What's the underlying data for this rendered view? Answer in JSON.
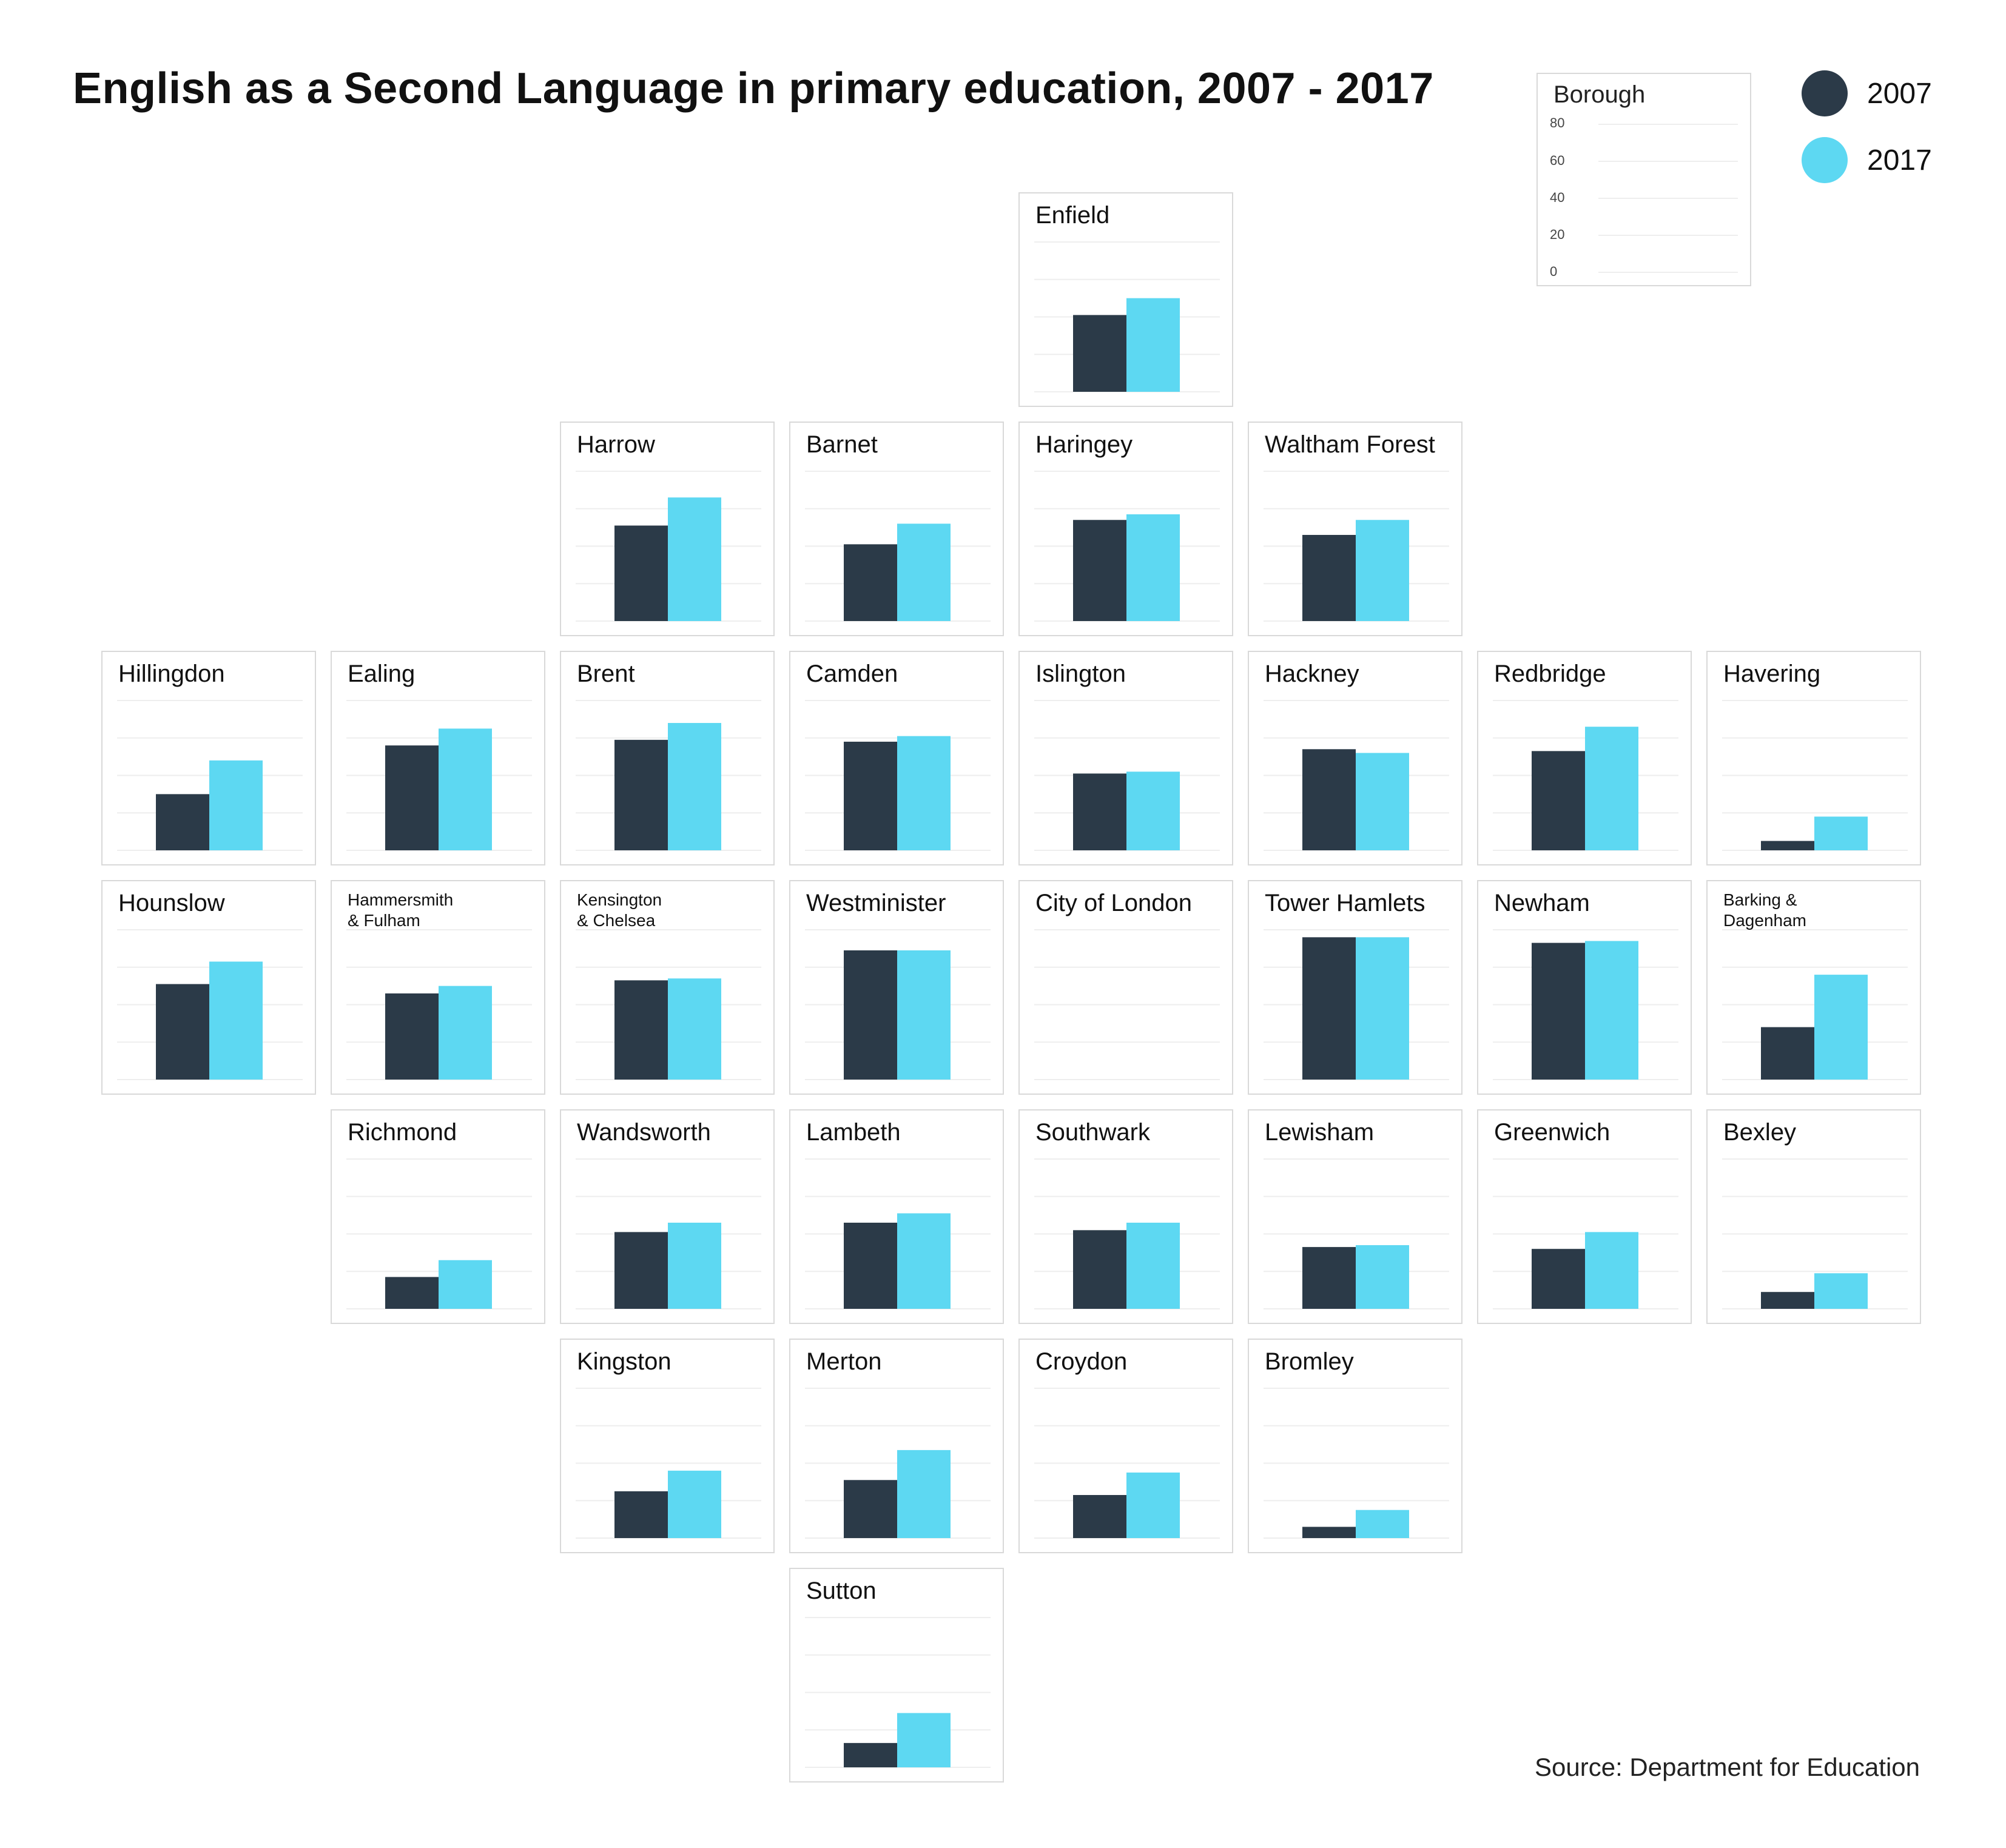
{
  "title": "English as a Second Language in primary education, 2007 - 2017",
  "source": "Source: Department for Education",
  "colors": {
    "y2007": "#2b3a48",
    "y2017": "#5dd8f2"
  },
  "legend": [
    {
      "label": "2007",
      "color": "#2b3a48"
    },
    {
      "label": "2017",
      "color": "#5dd8f2"
    }
  ],
  "key": {
    "title": "Borough",
    "ticks": [
      "80",
      "60",
      "40",
      "20",
      "0"
    ]
  },
  "chart_data": {
    "type": "bar",
    "title": "English as a Second Language in primary education, 2007 - 2017",
    "ylabel": "",
    "ylim": [
      0,
      80
    ],
    "series_names": [
      "2007",
      "2017"
    ],
    "boroughs": [
      {
        "name": "Enfield",
        "label": "Enfield",
        "row": 0,
        "col": 4,
        "values": [
          41,
          50
        ]
      },
      {
        "name": "Harrow",
        "label": "Harrow",
        "row": 1,
        "col": 2,
        "values": [
          51,
          66
        ]
      },
      {
        "name": "Barnet",
        "label": "Barnet",
        "row": 1,
        "col": 3,
        "values": [
          41,
          52
        ]
      },
      {
        "name": "Haringey",
        "label": "Haringey",
        "row": 1,
        "col": 4,
        "values": [
          54,
          57
        ]
      },
      {
        "name": "Waltham Forest",
        "label": "Waltham Forest",
        "row": 1,
        "col": 5,
        "values": [
          46,
          54
        ]
      },
      {
        "name": "Hillingdon",
        "label": "Hillingdon",
        "row": 2,
        "col": 0,
        "values": [
          30,
          48
        ]
      },
      {
        "name": "Ealing",
        "label": "Ealing",
        "row": 2,
        "col": 1,
        "values": [
          56,
          65
        ]
      },
      {
        "name": "Brent",
        "label": "Brent",
        "row": 2,
        "col": 2,
        "values": [
          59,
          68
        ]
      },
      {
        "name": "Camden",
        "label": "Camden",
        "row": 2,
        "col": 3,
        "values": [
          58,
          61
        ]
      },
      {
        "name": "Islington",
        "label": "Islington",
        "row": 2,
        "col": 4,
        "values": [
          41,
          42
        ]
      },
      {
        "name": "Hackney",
        "label": "Hackney",
        "row": 2,
        "col": 5,
        "values": [
          54,
          52
        ]
      },
      {
        "name": "Redbridge",
        "label": "Redbridge",
        "row": 2,
        "col": 6,
        "values": [
          53,
          66
        ]
      },
      {
        "name": "Havering",
        "label": "Havering",
        "row": 2,
        "col": 7,
        "values": [
          5,
          18
        ]
      },
      {
        "name": "Hounslow",
        "label": "Hounslow",
        "row": 3,
        "col": 0,
        "values": [
          51,
          63
        ]
      },
      {
        "name": "Hammersmith & Fulham",
        "label": "Hammersmith\n& Fulham",
        "row": 3,
        "col": 1,
        "values": [
          46,
          50
        ],
        "small": true
      },
      {
        "name": "Kensington & Chelsea",
        "label": "Kensington\n& Chelsea",
        "row": 3,
        "col": 2,
        "values": [
          53,
          54
        ],
        "small": true
      },
      {
        "name": "Westminister",
        "label": "Westminister",
        "row": 3,
        "col": 3,
        "values": [
          69,
          69
        ]
      },
      {
        "name": "City of London",
        "label": "City of London",
        "row": 3,
        "col": 4,
        "values": []
      },
      {
        "name": "Tower Hamlets",
        "label": "Tower Hamlets",
        "row": 3,
        "col": 5,
        "values": [
          76,
          76
        ]
      },
      {
        "name": "Newham",
        "label": "Newham",
        "row": 3,
        "col": 6,
        "values": [
          73,
          74
        ]
      },
      {
        "name": "Barking & Dagenham",
        "label": "Barking &\nDagenham",
        "row": 3,
        "col": 7,
        "values": [
          28,
          56
        ],
        "small": true
      },
      {
        "name": "Richmond",
        "label": "Richmond",
        "row": 4,
        "col": 1,
        "values": [
          17,
          26
        ]
      },
      {
        "name": "Wandsworth",
        "label": "Wandsworth",
        "row": 4,
        "col": 2,
        "values": [
          41,
          46
        ]
      },
      {
        "name": "Lambeth",
        "label": "Lambeth",
        "row": 4,
        "col": 3,
        "values": [
          46,
          51
        ]
      },
      {
        "name": "Southwark",
        "label": "Southwark",
        "row": 4,
        "col": 4,
        "values": [
          42,
          46
        ]
      },
      {
        "name": "Lewisham",
        "label": "Lewisham",
        "row": 4,
        "col": 5,
        "values": [
          33,
          34
        ]
      },
      {
        "name": "Greenwich",
        "label": "Greenwich",
        "row": 4,
        "col": 6,
        "values": [
          32,
          41
        ]
      },
      {
        "name": "Bexley",
        "label": "Bexley",
        "row": 4,
        "col": 7,
        "values": [
          9,
          19
        ]
      },
      {
        "name": "Kingston",
        "label": "Kingston",
        "row": 5,
        "col": 2,
        "values": [
          25,
          36
        ]
      },
      {
        "name": "Merton",
        "label": "Merton",
        "row": 5,
        "col": 3,
        "values": [
          31,
          47
        ]
      },
      {
        "name": "Croydon",
        "label": "Croydon",
        "row": 5,
        "col": 4,
        "values": [
          23,
          35
        ]
      },
      {
        "name": "Bromley",
        "label": "Bromley",
        "row": 5,
        "col": 5,
        "values": [
          6,
          15
        ]
      },
      {
        "name": "Sutton",
        "label": "Sutton",
        "row": 6,
        "col": 3,
        "values": [
          13,
          29
        ]
      }
    ]
  }
}
